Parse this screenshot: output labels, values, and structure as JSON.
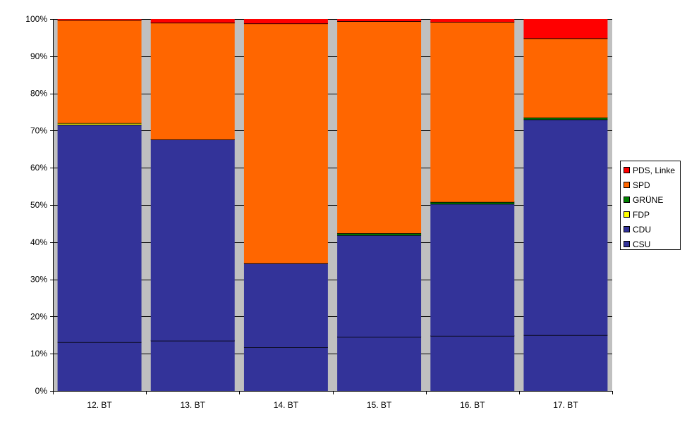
{
  "chart_data": {
    "type": "bar",
    "stacked": true,
    "percent_stacked": true,
    "categories": [
      "12. BT",
      "13. BT",
      "14. BT",
      "15. BT",
      "16. BT",
      "17. BT"
    ],
    "series": [
      {
        "name": "CSU",
        "color": "#333399",
        "values": [
          13.1,
          13.5,
          11.7,
          14.5,
          14.8,
          15.0
        ]
      },
      {
        "name": "CDU",
        "color": "#333399",
        "values": [
          58.5,
          54.1,
          22.6,
          27.4,
          35.5,
          58.0
        ]
      },
      {
        "name": "FDP",
        "color": "#FFFF00",
        "values": [
          0.4,
          0.0,
          0.0,
          0.0,
          0.0,
          0.0
        ]
      },
      {
        "name": "GRÜNE",
        "color": "#008000",
        "values": [
          0.0,
          0.0,
          0.0,
          0.5,
          0.5,
          0.5
        ]
      },
      {
        "name": "SPD",
        "color": "#FF6600",
        "values": [
          27.7,
          31.4,
          64.5,
          57.0,
          48.4,
          21.3
        ]
      },
      {
        "name": "PDS, Linke",
        "color": "#FF0000",
        "values": [
          0.3,
          1.0,
          1.2,
          0.6,
          0.8,
          5.2
        ]
      }
    ],
    "legend_order": [
      "PDS, Linke",
      "SPD",
      "GRÜNE",
      "FDP",
      "CDU",
      "CSU"
    ],
    "y_ticks": [
      "0%",
      "10%",
      "20%",
      "30%",
      "40%",
      "50%",
      "60%",
      "70%",
      "80%",
      "90%",
      "100%"
    ],
    "ylim": [
      0,
      100
    ],
    "grid": true,
    "plot_background": "#C0C0C0",
    "legend_position": "right",
    "title": "",
    "xlabel": "",
    "ylabel": ""
  }
}
